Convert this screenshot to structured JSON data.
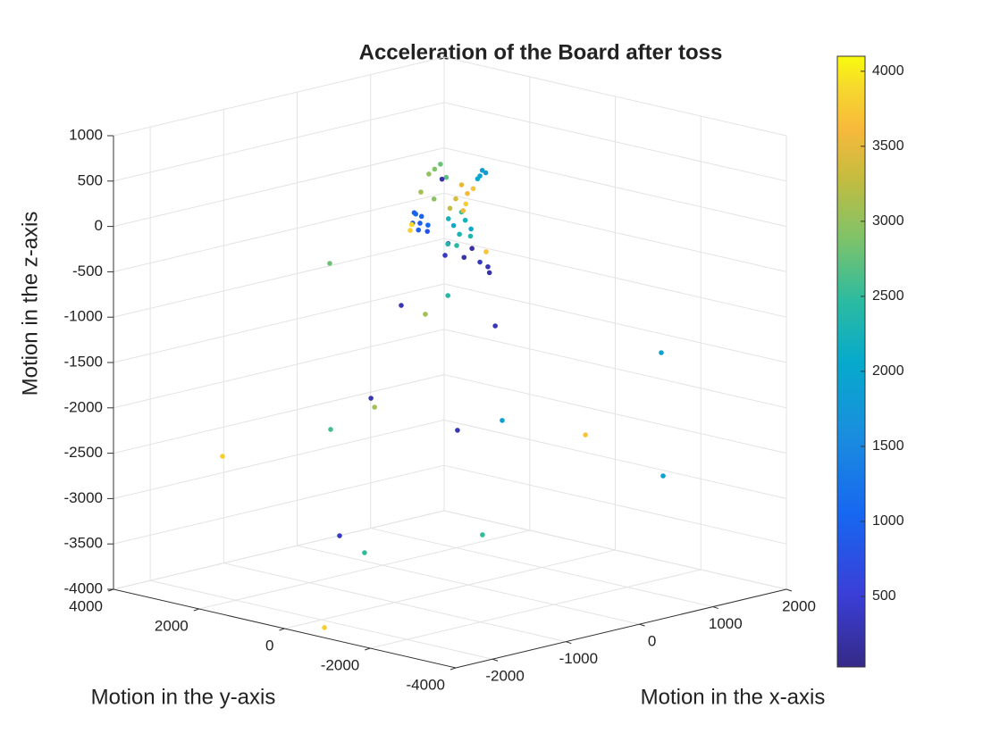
{
  "chart_data": {
    "type": "scatter3d",
    "title": "Acceleration of the Board after toss",
    "xlabel": "Motion in the x-axis",
    "ylabel": "Motion in the y-axis",
    "zlabel": "Motion in the z-axis",
    "xlim": [
      -2500,
      2000
    ],
    "xticks": [
      -2000,
      -1000,
      0,
      1000,
      2000
    ],
    "ylim": [
      -4000,
      4000
    ],
    "yticks": [
      -4000,
      -2000,
      0,
      2000,
      4000
    ],
    "zlim": [
      -4000,
      1000
    ],
    "zticks": [
      -4000,
      -3500,
      -3000,
      -2500,
      -2000,
      -1500,
      -1000,
      -500,
      0,
      500,
      1000
    ],
    "clim": [
      30,
      4100
    ],
    "cticks": [
      500,
      1000,
      1500,
      2000,
      2500,
      3000,
      3500,
      4000
    ],
    "colormap": "parula",
    "grid": true,
    "x": [
      -1150,
      -2050,
      -1600,
      -1555,
      -1150,
      -1600,
      -1375,
      -2275,
      -250,
      200,
      1100,
      1550,
      1775,
      -250,
      -25,
      -250,
      -475,
      -250,
      -25,
      -250,
      -200,
      -300,
      -250,
      -150,
      -300,
      -200,
      -350,
      -100,
      0,
      100,
      150,
      -200,
      50,
      200,
      -200,
      -150,
      -100,
      -250,
      -50,
      -150,
      0,
      -100,
      -300,
      100,
      150,
      80,
      120,
      -150,
      -100,
      -200,
      -50,
      -150,
      -250,
      -100,
      -400,
      -350,
      -450,
      -300,
      -500,
      -350,
      -450,
      -500,
      -300
    ],
    "y": [
      1264,
      2224,
      -472,
      -480,
      1243,
      261,
      64,
      -544,
      -176,
      -448,
      -848,
      -1848,
      -1504,
      -760,
      -672,
      576,
      752,
      48,
      -459,
      700,
      750,
      650,
      800,
      700,
      750,
      600,
      700,
      300,
      100,
      -100,
      -200,
      200,
      0,
      -150,
      0,
      -50,
      -100,
      50,
      -150,
      -100,
      -50,
      100,
      -50,
      -100,
      -150,
      -80,
      -120,
      -100,
      -150,
      -50,
      -200,
      -200,
      0,
      -50,
      100,
      50,
      150,
      0,
      250,
      200,
      550,
      500,
      100
    ],
    "z": [
      -371,
      -2428,
      -1583,
      -1689,
      -2199,
      -3178,
      -3387,
      -3974,
      -2228,
      -2177,
      -2466,
      -1538,
      -2977,
      -3317,
      -1067,
      -1030,
      -909,
      -767,
      -273,
      -40,
      20,
      -100,
      50,
      -150,
      80,
      -60,
      -20,
      -250,
      -400,
      -450,
      -500,
      -350,
      -300,
      -580,
      0,
      -100,
      50,
      -200,
      -50,
      150,
      -150,
      -250,
      100,
      500,
      530,
      470,
      560,
      450,
      350,
      300,
      400,
      250,
      200,
      150,
      650,
      700,
      600,
      550,
      400,
      300,
      0,
      -50,
      520
    ],
    "c": [
      2800,
      3800,
      300,
      3100,
      2600,
      400,
      2500,
      3800,
      300,
      1900,
      3700,
      1900,
      1900,
      2500,
      300,
      3100,
      300,
      2400,
      3700,
      900,
      1000,
      950,
      1100,
      800,
      1000,
      1050,
      900,
      300,
      250,
      350,
      300,
      400,
      200,
      250,
      2100,
      2300,
      2200,
      2400,
      2000,
      2500,
      2350,
      2450,
      2250,
      1900,
      1800,
      2000,
      1850,
      3500,
      3600,
      3400,
      3700,
      3800,
      3300,
      3550,
      2900,
      2800,
      3000,
      2700,
      3100,
      2950,
      3900,
      3800,
      200
    ]
  }
}
